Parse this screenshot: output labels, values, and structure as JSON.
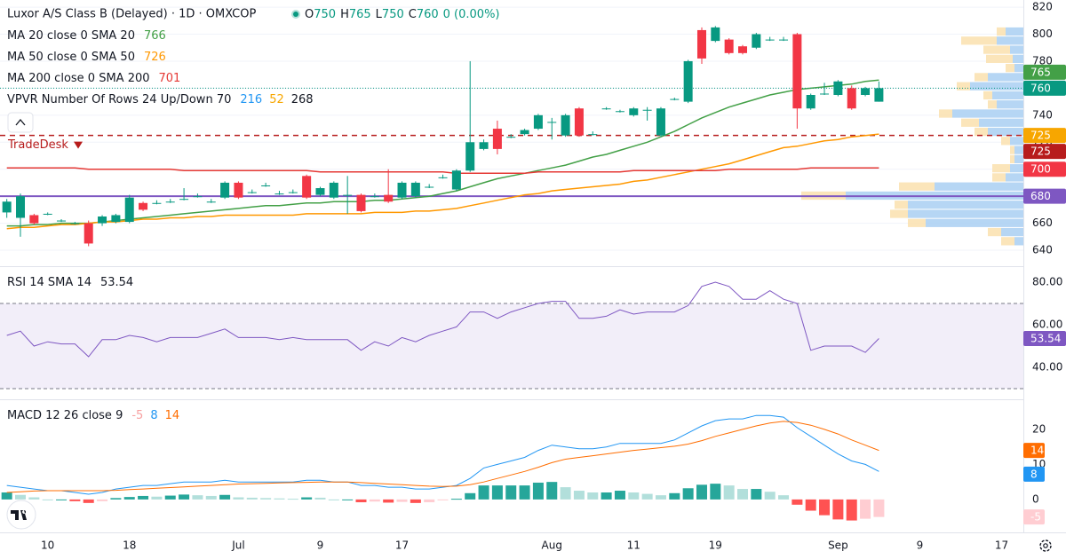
{
  "chart_data": [
    {
      "type": "candlestick",
      "title": "Luxor A/S Class B (Delayed) · 1D · OMXCOP",
      "ohlc": [
        {
          "label": "O",
          "value": 750
        },
        {
          "label": "H",
          "value": 765
        },
        {
          "label": "L",
          "value": 750
        },
        {
          "label": "C",
          "value": 760
        }
      ],
      "change": "0 (0.00%)",
      "up_color": "#089981",
      "down_color": "#f23645",
      "open": [
        668,
        664,
        666,
        667,
        662,
        660,
        660,
        660,
        661,
        661,
        675,
        675,
        676,
        678,
        680,
        676,
        679,
        690,
        683,
        688,
        682,
        683,
        695,
        681,
        679,
        681,
        681,
        680,
        681,
        679,
        680,
        687,
        694,
        685,
        699,
        715,
        730,
        724,
        726,
        730,
        735,
        725,
        745,
        726,
        745,
        743,
        740,
        744,
        725,
        752,
        750,
        803,
        795,
        796,
        791,
        790,
        796,
        796,
        800,
        745,
        756,
        755,
        760,
        755,
        750
      ],
      "high": [
        678,
        682,
        667,
        668,
        663,
        661,
        662,
        666,
        667,
        681,
        676,
        677,
        678,
        686,
        682,
        678,
        691,
        691,
        685,
        690,
        684,
        685,
        696,
        687,
        691,
        695,
        682,
        682,
        700,
        691,
        691,
        689,
        696,
        700,
        780,
        722,
        736,
        726,
        730,
        741,
        738,
        741,
        746,
        728,
        746,
        744,
        746,
        746,
        746,
        753,
        781,
        805,
        806,
        797,
        792,
        801,
        798,
        798,
        801,
        756,
        764,
        766,
        762,
        761,
        765
      ],
      "low": [
        664,
        650,
        659,
        666,
        661,
        659,
        643,
        658,
        660,
        660,
        669,
        674,
        675,
        677,
        679,
        675,
        678,
        678,
        682,
        687,
        681,
        682,
        678,
        680,
        678,
        667,
        668,
        679,
        675,
        678,
        679,
        686,
        693,
        684,
        698,
        714,
        711,
        723,
        725,
        729,
        722,
        724,
        724,
        725,
        744,
        742,
        739,
        736,
        724,
        751,
        749,
        778,
        794,
        785,
        785,
        789,
        795,
        795,
        730,
        744,
        755,
        754,
        744,
        754,
        750
      ],
      "close": [
        676,
        680,
        660,
        667,
        662,
        660,
        645,
        665,
        666,
        679,
        670,
        675,
        676,
        678,
        680,
        676,
        690,
        679,
        683,
        688,
        682,
        683,
        679,
        686,
        690,
        681,
        669,
        680,
        676,
        690,
        690,
        687,
        694,
        699,
        720,
        720,
        715,
        724,
        729,
        740,
        735,
        740,
        725,
        726,
        745,
        743,
        745,
        744,
        745,
        752,
        780,
        782,
        805,
        786,
        786,
        800,
        796,
        796,
        745,
        755,
        756,
        765,
        745,
        760,
        760
      ],
      "moving_averages": [
        {
          "label": "MA 20 close 0 SMA 20",
          "color": "#43a047",
          "values": [
            658,
            658,
            659,
            659,
            660,
            660,
            660,
            661,
            662,
            663,
            664,
            665,
            666,
            667,
            668,
            669,
            670,
            671,
            672,
            673,
            673,
            674,
            675,
            675,
            676,
            676,
            676,
            677,
            677,
            678,
            679,
            680,
            682,
            684,
            687,
            690,
            693,
            695,
            697,
            699,
            701,
            703,
            706,
            709,
            711,
            714,
            717,
            720,
            724,
            728,
            733,
            738,
            742,
            746,
            749,
            752,
            755,
            757,
            759,
            760,
            761,
            762,
            763,
            765,
            766
          ]
        },
        {
          "label": "MA 50 close 0 SMA 50",
          "color": "#ff9800",
          "values": [
            656,
            657,
            657,
            658,
            659,
            659,
            660,
            661,
            661,
            662,
            663,
            663,
            664,
            664,
            665,
            665,
            666,
            666,
            666,
            666,
            666,
            666,
            667,
            667,
            667,
            667,
            667,
            668,
            668,
            668,
            669,
            669,
            670,
            671,
            673,
            675,
            677,
            679,
            681,
            682,
            684,
            685,
            686,
            687,
            688,
            689,
            691,
            692,
            694,
            696,
            698,
            700,
            702,
            704,
            707,
            710,
            713,
            716,
            717,
            719,
            721,
            722,
            724,
            725,
            726
          ]
        },
        {
          "label": "MA 200 close 0 SMA 200",
          "color": "#e53935",
          "values": [
            701,
            701,
            701,
            701,
            701,
            701,
            700,
            700,
            700,
            700,
            700,
            700,
            700,
            699,
            699,
            699,
            699,
            699,
            699,
            699,
            699,
            699,
            699,
            698,
            698,
            698,
            698,
            698,
            698,
            698,
            698,
            698,
            698,
            697,
            697,
            697,
            697,
            697,
            697,
            698,
            698,
            698,
            698,
            698,
            698,
            698,
            699,
            699,
            699,
            699,
            699,
            699,
            699,
            700,
            700,
            700,
            700,
            700,
            700,
            701,
            701,
            701,
            701,
            701,
            701
          ]
        }
      ],
      "vpvr": {
        "label": "VPVR Number Of Rows 24 Up/Down 70",
        "up_total": 216,
        "down_total": 52,
        "total": 268,
        "up_color": "#a9cff2",
        "down_color": "#fbe2b2",
        "levels": [
          643,
          649.75,
          656.5,
          663.25,
          670,
          676.75,
          683.5,
          690.25,
          697,
          703.75,
          710.5,
          717.25,
          724,
          730.75,
          737.5,
          744.25,
          751,
          757.75,
          764.5,
          771.25,
          778,
          784.75,
          791.5,
          798.25,
          805
        ],
        "up": [
          10,
          25,
          110,
          130,
          130,
          200,
          100,
          20,
          15,
          10,
          10,
          15,
          40,
          50,
          80,
          30,
          35,
          60,
          40,
          10,
          12,
          15,
          30,
          20
        ],
        "down": [
          15,
          15,
          20,
          20,
          15,
          50,
          40,
          15,
          20,
          5,
          5,
          10,
          15,
          20,
          15,
          10,
          10,
          15,
          15,
          10,
          30,
          30,
          40,
          10
        ]
      },
      "hlines": [
        {
          "name": "TradeDesk",
          "value": 725,
          "color": "#b71c1c"
        },
        {
          "value": 680,
          "color": "#7e57c2"
        }
      ],
      "price_badges": [
        {
          "value": 760,
          "color": "#089981"
        },
        {
          "value": 765,
          "color": "#43a047"
        },
        {
          "value": 725,
          "color": "#f7a600"
        },
        {
          "value": 725,
          "color": "#b71c1c"
        },
        {
          "value": 700,
          "color": "#f23645"
        },
        {
          "value": 680,
          "color": "#7e57c2"
        }
      ],
      "ylim": [
        628.2,
        825.3
      ],
      "yticks": [
        640,
        660,
        680,
        700,
        720,
        740,
        760,
        780,
        800,
        820
      ],
      "xlim": [
        -0.5,
        74.6
      ],
      "xticks": [
        {
          "value": 3,
          "label": "10"
        },
        {
          "value": 9,
          "label": "18"
        },
        {
          "value": 17,
          "label": "Jul"
        },
        {
          "value": 23,
          "label": "9"
        },
        {
          "value": 29,
          "label": "17"
        },
        {
          "value": 40,
          "label": "Aug"
        },
        {
          "value": 46,
          "label": "11"
        },
        {
          "value": 52,
          "label": "19"
        },
        {
          "value": 61,
          "label": "Sep"
        },
        {
          "value": 67,
          "label": "9"
        },
        {
          "value": 73,
          "label": "17"
        }
      ],
      "grid": true
    },
    {
      "type": "line",
      "title": "RSI 14 SMA 14",
      "color": "#7e57c2",
      "values": [
        55,
        57,
        50,
        52,
        51,
        51,
        45,
        53,
        53,
        55,
        54,
        52,
        54,
        54,
        54,
        56,
        58,
        54,
        54,
        54,
        53,
        54,
        53,
        53,
        53,
        53,
        48,
        52,
        50,
        54,
        52,
        55,
        57,
        59,
        66,
        66,
        63,
        66,
        68,
        70,
        71,
        71,
        63,
        63,
        64,
        67,
        65,
        66,
        66,
        66,
        69,
        78,
        80,
        78,
        72,
        72,
        76,
        72,
        70,
        48,
        50,
        50,
        50,
        47,
        53.54
      ],
      "bands": [
        70,
        30
      ],
      "band_fill": "rgba(126,87,194,0.1)",
      "ylim": [
        25,
        87.5
      ],
      "yticks": [
        {
          "value": 40,
          "label": "40.00"
        },
        {
          "value": 60,
          "label": "60.00"
        },
        {
          "value": 80,
          "label": "80.00"
        }
      ]
    },
    {
      "type": "macd",
      "title": "MACD 12 26 close 9",
      "histogram": {
        "colors": [
          "#26a69a",
          "#b2dfdb",
          "#ff5252",
          "#ffcdd2"
        ],
        "label_color": "#f7a1a1",
        "values": [
          2,
          1.3,
          0.6,
          0,
          0,
          -0.5,
          -1,
          -0.5,
          0.4,
          0.7,
          1,
          0.8,
          1.1,
          1.4,
          1.2,
          1,
          1.3,
          0.6,
          0.5,
          0.4,
          0.3,
          0.2,
          0.6,
          0.5,
          0,
          0,
          -0.8,
          -0.6,
          -0.9,
          -0.7,
          -1,
          -0.8,
          -0.2,
          0.2,
          1.8,
          4,
          4,
          4,
          4,
          4.8,
          5,
          3.5,
          2.5,
          2,
          2,
          2.5,
          2,
          1.6,
          1.2,
          1.8,
          3.2,
          4.2,
          4.5,
          4,
          3,
          3,
          2.2,
          1.2,
          -1.5,
          -3.2,
          -4.5,
          -5.7,
          -6,
          -5.5,
          -5
        ]
      },
      "macd_line": {
        "color": "#2196f3",
        "values": [
          4,
          3.5,
          3,
          2.5,
          2.5,
          2,
          1.5,
          2,
          3,
          3.5,
          4,
          4,
          4.5,
          5,
          5,
          5,
          5.5,
          5,
          5,
          5,
          5,
          5,
          5.5,
          5.5,
          5,
          5,
          4,
          4,
          3.5,
          3.5,
          3,
          3,
          3.5,
          4,
          6,
          9,
          10,
          11,
          12,
          14,
          15.5,
          15,
          14.5,
          14.5,
          15,
          16,
          16,
          16,
          16,
          17,
          19,
          21,
          22.5,
          23,
          23,
          24,
          24,
          23.5,
          20.5,
          18,
          15.5,
          13,
          11,
          10,
          8
        ]
      },
      "signal_line": {
        "color": "#ff6d00",
        "values": [
          2,
          2.2,
          2.4,
          2.5,
          2.5,
          2.5,
          2.5,
          2.5,
          2.6,
          2.8,
          3,
          3.2,
          3.4,
          3.6,
          3.8,
          4,
          4.2,
          4.4,
          4.5,
          4.6,
          4.7,
          4.8,
          4.9,
          5,
          5,
          5,
          4.8,
          4.6,
          4.4,
          4.2,
          4,
          3.8,
          3.7,
          3.8,
          4.2,
          5,
          6,
          7,
          8,
          9.2,
          10.5,
          11.5,
          12,
          12.5,
          13,
          13.5,
          14,
          14.4,
          14.8,
          15.2,
          15.8,
          16.8,
          18,
          19,
          20,
          21,
          21.8,
          22.3,
          22,
          21.2,
          20,
          18.7,
          17,
          15.5,
          14
        ]
      },
      "ylim": [
        -9.4,
        28.6
      ],
      "yticks": [
        0,
        10,
        20
      ]
    }
  ]
}
